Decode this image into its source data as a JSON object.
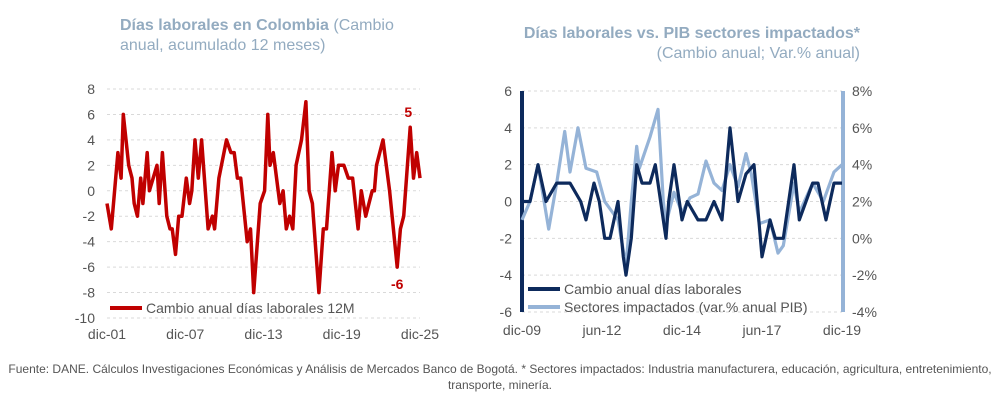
{
  "titles": [
    {
      "bold": "Días laborales en Colombia",
      "rest": " (Cambio anual, acumulado 12 meses)"
    },
    {
      "bold": "Días laborales vs. PIB sectores impactados*",
      "rest": " (Cambio anual; Var.% anual)"
    }
  ],
  "source": "Fuente: DANE. Cálculos Investigaciones Económicas y Análisis de Mercados Banco de Bogotá. * Sectores impactados: Industria manufacturera, educación, agricultura, entretenimiento, transporte, minería.",
  "chart_data": [
    {
      "type": "line",
      "title": "Días laborales en Colombia (Cambio anual, acumulado 12 meses)",
      "ylim": [
        -10,
        8
      ],
      "yticks": [
        "8",
        "6",
        "4",
        "2",
        "0",
        "-2",
        "-4",
        "-6",
        "-8",
        "-10"
      ],
      "xticks": [
        "dic-01",
        "dic-07",
        "dic-13",
        "dic-19",
        "dic-25"
      ],
      "grid": true,
      "legend": "bottom-left",
      "annotations": [
        {
          "text": "5",
          "x": "2025-03",
          "y": 5
        },
        {
          "text": "-6",
          "x": "2024-03",
          "y": -6
        }
      ],
      "series": [
        {
          "name": "Cambio anual días laborales 12M",
          "color": "#c00000",
          "axis": "left",
          "x": [
            "2001-12",
            "2002-04",
            "2002-10",
            "2003-01",
            "2003-03",
            "2003-08",
            "2003-11",
            "2004-01",
            "2004-04",
            "2004-07",
            "2004-09",
            "2005-01",
            "2005-03",
            "2005-10",
            "2005-12",
            "2006-03",
            "2006-07",
            "2006-10",
            "2006-12",
            "2007-03",
            "2007-06",
            "2007-09",
            "2008-01",
            "2008-04",
            "2008-06",
            "2008-09",
            "2008-12",
            "2009-03",
            "2009-09",
            "2010-01",
            "2010-03",
            "2010-07",
            "2011-02",
            "2011-06",
            "2011-09",
            "2011-12",
            "2012-03",
            "2012-09",
            "2012-12",
            "2013-03",
            "2013-09",
            "2014-01",
            "2014-04",
            "2014-06",
            "2014-09",
            "2015-03",
            "2015-06",
            "2015-09",
            "2015-12",
            "2016-03",
            "2016-06",
            "2016-11",
            "2017-03",
            "2017-06",
            "2017-09",
            "2018-03",
            "2018-07",
            "2018-10",
            "2019-03",
            "2019-06",
            "2019-09",
            "2020-02",
            "2020-06",
            "2020-10",
            "2021-03",
            "2021-06",
            "2021-10",
            "2022-04",
            "2022-06",
            "2022-08",
            "2023-02",
            "2023-08",
            "2024-03",
            "2024-06",
            "2024-09",
            "2025-03",
            "2025-06",
            "2025-09",
            "2025-12"
          ],
          "y": [
            -1,
            -3,
            3,
            1,
            6,
            2,
            1,
            -1,
            -2,
            1,
            -1,
            3,
            0,
            2,
            -1,
            3,
            -2,
            -3,
            -3,
            -5,
            -2,
            -2,
            1,
            -1,
            0,
            4,
            1,
            4,
            -3,
            -2,
            -3,
            1,
            4,
            3,
            3,
            1,
            1,
            -4,
            -3,
            -8,
            -1,
            0,
            6,
            2,
            3,
            -1,
            0,
            -3,
            -2,
            -3,
            2,
            4,
            7,
            0,
            -1,
            -8,
            -3,
            -3,
            3,
            0,
            2,
            2,
            1,
            1,
            -3,
            0,
            -2,
            0,
            0,
            2,
            4,
            0,
            -6,
            -3,
            -2,
            5,
            1,
            3,
            1
          ]
        }
      ]
    },
    {
      "type": "line",
      "title": "Días laborales vs. PIB sectores impactados* (Cambio anual; Var.% anual)",
      "ylim": [
        -6,
        6
      ],
      "y2lim": [
        -4,
        8
      ],
      "yticks": [
        "6",
        "4",
        "2",
        "0",
        "-2",
        "-4",
        "-6"
      ],
      "y2ticks": [
        "8%",
        "6%",
        "4%",
        "2%",
        "0%",
        "-2%",
        "-4%"
      ],
      "xticks": [
        "dic-09",
        "jun-12",
        "dic-14",
        "jun-17",
        "dic-19"
      ],
      "grid": true,
      "legend": "bottom-left",
      "series": [
        {
          "name": "Cambio anual días laborales",
          "color": "#0d2a5c",
          "axis": "left",
          "x": [
            "2009-12",
            "2010-03",
            "2010-06",
            "2010-09",
            "2011-01",
            "2011-06",
            "2011-10",
            "2011-12",
            "2012-03",
            "2012-05",
            "2012-07",
            "2012-09",
            "2012-12",
            "2013-02",
            "2013-03",
            "2013-05",
            "2013-07",
            "2013-09",
            "2013-12",
            "2014-02",
            "2014-05",
            "2014-06",
            "2014-07",
            "2014-09",
            "2014-12",
            "2015-02",
            "2015-06",
            "2015-09",
            "2015-12",
            "2016-03",
            "2016-06",
            "2016-09",
            "2016-12",
            "2017-03",
            "2017-06",
            "2017-09",
            "2017-11",
            "2018-02",
            "2018-06",
            "2018-08",
            "2019-01",
            "2019-03",
            "2019-06",
            "2019-09",
            "2019-12"
          ],
          "y": [
            0,
            0,
            2,
            0,
            1,
            1,
            0,
            -1,
            1,
            0,
            -2,
            -2,
            0,
            -3,
            -4,
            -2,
            2,
            1,
            1,
            2,
            -1,
            -2,
            0,
            2,
            -1,
            0,
            -1,
            -1,
            0,
            -1,
            4,
            0,
            1.5,
            2,
            -3,
            -1,
            -2,
            -2,
            2,
            -1,
            1,
            1,
            -1,
            1,
            1
          ]
        },
        {
          "name": "Sectores impactados (var.% anual PIB)",
          "color": "#95b3d7",
          "axis": "right",
          "x": [
            "2009-12",
            "2010-03",
            "2010-06",
            "2010-10",
            "2011-01",
            "2011-04",
            "2011-06",
            "2011-09",
            "2011-12",
            "2012-04",
            "2012-07",
            "2012-12",
            "2013-03",
            "2013-05",
            "2013-07",
            "2013-08",
            "2013-12",
            "2014-03",
            "2014-05",
            "2014-06",
            "2014-09",
            "2014-12",
            "2015-03",
            "2015-06",
            "2015-09",
            "2015-12",
            "2016-03",
            "2016-06",
            "2016-09",
            "2016-12",
            "2017-02",
            "2017-05",
            "2017-09",
            "2017-12",
            "2018-02",
            "2018-06",
            "2018-08",
            "2019-01",
            "2019-05",
            "2019-09",
            "2019-12"
          ],
          "y": [
            1,
            2,
            4,
            0.5,
            3,
            5.8,
            3.6,
            6,
            3.8,
            3.6,
            2,
            1,
            -1.5,
            2,
            5,
            3.8,
            5.5,
            7,
            2,
            0.8,
            2.5,
            1.4,
            2.2,
            2.4,
            4.2,
            3,
            2.6,
            4,
            2.8,
            4.6,
            3.5,
            0.8,
            1,
            -0.8,
            -0.4,
            3,
            1.4,
            3,
            2,
            3.6,
            4
          ]
        }
      ]
    }
  ]
}
